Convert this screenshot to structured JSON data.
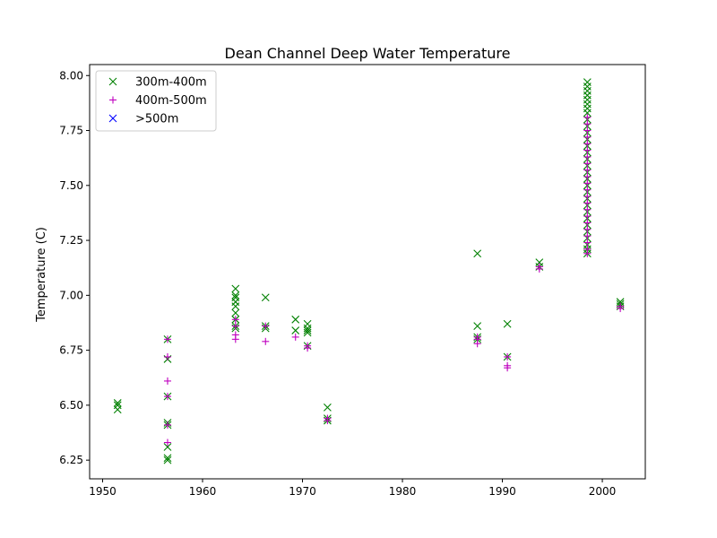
{
  "chart_data": {
    "type": "scatter",
    "title": "Dean Channel Deep Water Temperature",
    "xlabel": "",
    "ylabel": "Temperature (C)",
    "xlim": [
      1948.7,
      2004.3
    ],
    "ylim": [
      6.165,
      8.05
    ],
    "xticks": [
      1950,
      1960,
      1970,
      1980,
      1990,
      2000
    ],
    "yticks": [
      6.25,
      6.5,
      6.75,
      7.0,
      7.25,
      7.5,
      7.75,
      8.0
    ],
    "xtick_labels": [
      "1950",
      "1960",
      "1970",
      "1980",
      "1990",
      "2000"
    ],
    "ytick_labels": [
      "6.25",
      "6.50",
      "6.75",
      "7.00",
      "7.25",
      "7.50",
      "7.75",
      "8.00"
    ],
    "legend_position": "top-left",
    "series": [
      {
        "name": "300m-400m",
        "marker": "x",
        "color": "#008000",
        "points": [
          [
            1951.5,
            6.51
          ],
          [
            1951.5,
            6.5
          ],
          [
            1951.5,
            6.48
          ],
          [
            1956.5,
            6.8
          ],
          [
            1956.5,
            6.71
          ],
          [
            1956.5,
            6.54
          ],
          [
            1956.5,
            6.42
          ],
          [
            1956.5,
            6.41
          ],
          [
            1956.5,
            6.31
          ],
          [
            1956.5,
            6.26
          ],
          [
            1956.5,
            6.25
          ],
          [
            1963.3,
            7.03
          ],
          [
            1963.3,
            7.0
          ],
          [
            1963.3,
            6.99
          ],
          [
            1963.3,
            6.97
          ],
          [
            1963.3,
            6.95
          ],
          [
            1963.3,
            6.92
          ],
          [
            1963.3,
            6.89
          ],
          [
            1963.3,
            6.86
          ],
          [
            1963.3,
            6.85
          ],
          [
            1966.3,
            6.99
          ],
          [
            1966.3,
            6.86
          ],
          [
            1966.3,
            6.85
          ],
          [
            1969.3,
            6.89
          ],
          [
            1969.3,
            6.84
          ],
          [
            1970.5,
            6.87
          ],
          [
            1970.5,
            6.85
          ],
          [
            1970.5,
            6.84
          ],
          [
            1970.5,
            6.83
          ],
          [
            1970.5,
            6.77
          ],
          [
            1972.5,
            6.49
          ],
          [
            1972.5,
            6.44
          ],
          [
            1972.5,
            6.43
          ],
          [
            1987.5,
            7.19
          ],
          [
            1987.5,
            6.86
          ],
          [
            1987.5,
            6.81
          ],
          [
            1987.5,
            6.8
          ],
          [
            1990.5,
            6.87
          ],
          [
            1990.5,
            6.72
          ],
          [
            1993.7,
            7.15
          ],
          [
            1993.7,
            7.13
          ],
          [
            1998.5,
            7.97
          ],
          [
            1998.5,
            7.95
          ],
          [
            1998.5,
            7.93
          ],
          [
            1998.5,
            7.91
          ],
          [
            1998.5,
            7.89
          ],
          [
            1998.5,
            7.87
          ],
          [
            1998.5,
            7.85
          ],
          [
            1998.5,
            7.83
          ],
          [
            1998.5,
            7.8
          ],
          [
            1998.5,
            7.77
          ],
          [
            1998.5,
            7.74
          ],
          [
            1998.5,
            7.71
          ],
          [
            1998.5,
            7.68
          ],
          [
            1998.5,
            7.65
          ],
          [
            1998.5,
            7.62
          ],
          [
            1998.5,
            7.59
          ],
          [
            1998.5,
            7.56
          ],
          [
            1998.5,
            7.53
          ],
          [
            1998.5,
            7.5
          ],
          [
            1998.5,
            7.47
          ],
          [
            1998.5,
            7.44
          ],
          [
            1998.5,
            7.41
          ],
          [
            1998.5,
            7.38
          ],
          [
            1998.5,
            7.35
          ],
          [
            1998.5,
            7.32
          ],
          [
            1998.5,
            7.29
          ],
          [
            1998.5,
            7.26
          ],
          [
            1998.5,
            7.23
          ],
          [
            1998.5,
            7.21
          ],
          [
            1998.5,
            7.19
          ],
          [
            2001.8,
            6.97
          ],
          [
            2001.8,
            6.96
          ],
          [
            2001.8,
            6.95
          ]
        ]
      },
      {
        "name": "400m-500m",
        "marker": "+",
        "color": "#bf00bf",
        "points": [
          [
            1956.5,
            6.8
          ],
          [
            1956.5,
            6.72
          ],
          [
            1956.5,
            6.61
          ],
          [
            1956.5,
            6.54
          ],
          [
            1956.5,
            6.41
          ],
          [
            1956.5,
            6.33
          ],
          [
            1963.3,
            6.89
          ],
          [
            1963.3,
            6.86
          ],
          [
            1963.3,
            6.82
          ],
          [
            1963.3,
            6.8
          ],
          [
            1966.3,
            6.86
          ],
          [
            1966.3,
            6.79
          ],
          [
            1969.3,
            6.81
          ],
          [
            1970.5,
            6.77
          ],
          [
            1970.5,
            6.76
          ],
          [
            1972.5,
            6.44
          ],
          [
            1972.5,
            6.43
          ],
          [
            1987.5,
            6.81
          ],
          [
            1987.5,
            6.8
          ],
          [
            1987.5,
            6.78
          ],
          [
            1990.5,
            6.72
          ],
          [
            1990.5,
            6.68
          ],
          [
            1990.5,
            6.67
          ],
          [
            1993.7,
            7.13
          ],
          [
            1993.7,
            7.12
          ],
          [
            1998.5,
            7.81
          ],
          [
            1998.5,
            7.78
          ],
          [
            1998.5,
            7.75
          ],
          [
            1998.5,
            7.72
          ],
          [
            1998.5,
            7.69
          ],
          [
            1998.5,
            7.66
          ],
          [
            1998.5,
            7.63
          ],
          [
            1998.5,
            7.6
          ],
          [
            1998.5,
            7.57
          ],
          [
            1998.5,
            7.54
          ],
          [
            1998.5,
            7.51
          ],
          [
            1998.5,
            7.48
          ],
          [
            1998.5,
            7.45
          ],
          [
            1998.5,
            7.42
          ],
          [
            1998.5,
            7.39
          ],
          [
            1998.5,
            7.36
          ],
          [
            1998.5,
            7.33
          ],
          [
            1998.5,
            7.3
          ],
          [
            1998.5,
            7.27
          ],
          [
            1998.5,
            7.24
          ],
          [
            1998.5,
            7.21
          ],
          [
            1998.5,
            7.19
          ],
          [
            2001.8,
            6.95
          ],
          [
            2001.8,
            6.94
          ]
        ]
      },
      {
        "name": ">500m",
        "marker": "x",
        "color": "#0000ff",
        "points": []
      }
    ]
  }
}
